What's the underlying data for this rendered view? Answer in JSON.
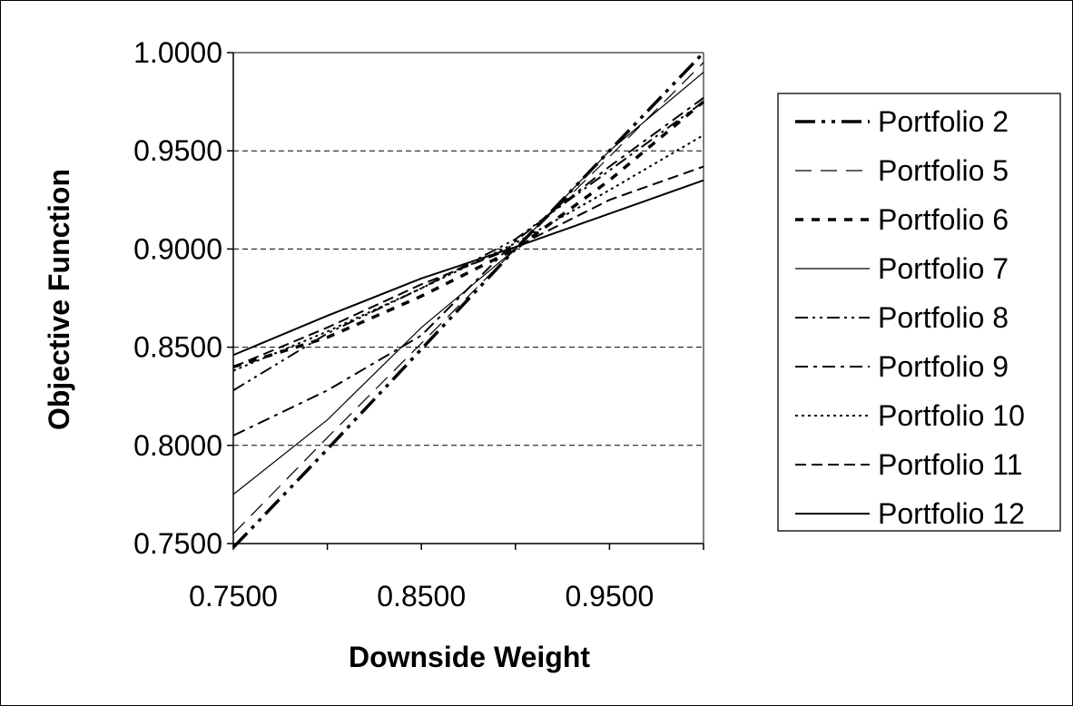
{
  "chart_data": {
    "type": "line",
    "xlabel": "Downside Weight",
    "ylabel": "Objective Function",
    "xlim": [
      0.75,
      1.0
    ],
    "ylim": [
      0.75,
      1.0
    ],
    "x_ticks": [
      "0.7500",
      "0.8500",
      "0.9500"
    ],
    "x_tick_values": [
      0.75,
      0.85,
      0.95
    ],
    "y_ticks": [
      "0.7500",
      "0.8000",
      "0.8500",
      "0.9000",
      "0.9500",
      "1.0000"
    ],
    "y_tick_values": [
      0.75,
      0.8,
      0.85,
      0.9,
      0.95,
      1.0
    ],
    "grid": "horizontal dashed",
    "legend_position": "right",
    "x": [
      0.75,
      0.8,
      0.85,
      0.9,
      0.95,
      1.0
    ],
    "series": [
      {
        "name": "Portfolio 2",
        "style": "long-dash-dot-dot",
        "weight": "bold",
        "values": [
          0.748,
          0.798,
          0.849,
          0.9,
          0.95,
          1.0
        ]
      },
      {
        "name": "Portfolio 5",
        "style": "long-dash",
        "weight": "thin",
        "values": [
          0.755,
          0.804,
          0.852,
          0.9,
          0.947,
          0.995
        ]
      },
      {
        "name": "Portfolio 6",
        "style": "short-dash",
        "weight": "bold",
        "values": [
          0.84,
          0.855,
          0.876,
          0.9,
          0.935,
          0.975
        ]
      },
      {
        "name": "Portfolio 7",
        "style": "solid",
        "weight": "thin",
        "values": [
          0.775,
          0.813,
          0.86,
          0.9,
          0.95,
          0.99
        ]
      },
      {
        "name": "Portfolio 8",
        "style": "dash-dot-dot",
        "weight": "normal",
        "values": [
          0.828,
          0.857,
          0.88,
          0.905,
          0.94,
          0.975
        ]
      },
      {
        "name": "Portfolio 9",
        "style": "dash-dot",
        "weight": "normal",
        "values": [
          0.805,
          0.828,
          0.856,
          0.904,
          0.942,
          0.977
        ]
      },
      {
        "name": "Portfolio 10",
        "style": "dotted",
        "weight": "normal",
        "values": [
          0.838,
          0.858,
          0.88,
          0.903,
          0.93,
          0.958
        ]
      },
      {
        "name": "Portfolio 11",
        "style": "dashed",
        "weight": "normal",
        "values": [
          0.84,
          0.86,
          0.882,
          0.901,
          0.925,
          0.942
        ]
      },
      {
        "name": "Portfolio 12",
        "style": "solid",
        "weight": "normal",
        "values": [
          0.846,
          0.866,
          0.885,
          0.901,
          0.918,
          0.935
        ]
      }
    ]
  }
}
